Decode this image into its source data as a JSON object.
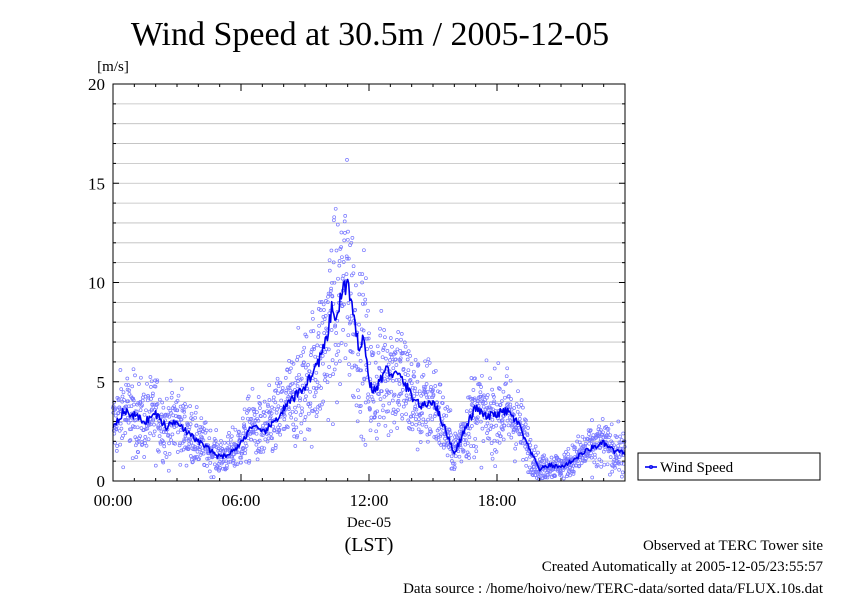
{
  "chart_data": {
    "type": "scatter",
    "title": "Wind Speed at 30.5m / 2005-12-05",
    "ylabel": "[m/s]",
    "xlabel": "(LST)",
    "date_label": "Dec-05",
    "ylim": [
      0,
      20
    ],
    "yticks": [
      "0",
      "5",
      "10",
      "15",
      "20"
    ],
    "xticks": [
      "00:00",
      "06:00",
      "12:00",
      "18:00"
    ],
    "x_unit": "hour of day",
    "xlim": [
      0,
      24
    ],
    "grid": true,
    "legend_position": "right, lower",
    "series": [
      {
        "name": "Wind Speed",
        "color": "#0000ee",
        "scatter_color": "#7777ff",
        "x": [
          0,
          0.5,
          1,
          1.5,
          2,
          2.5,
          3,
          3.5,
          4,
          4.5,
          5,
          5.5,
          6,
          6.5,
          7,
          7.5,
          8,
          8.5,
          9,
          9.5,
          10,
          10.25,
          10.5,
          10.75,
          11,
          11.25,
          11.5,
          11.75,
          12,
          12.25,
          12.5,
          12.75,
          13,
          13.5,
          14,
          14.5,
          15,
          15.5,
          16,
          16.5,
          17,
          17.5,
          18,
          18.5,
          19,
          19.5,
          20,
          20.5,
          21,
          21.5,
          22,
          22.5,
          23,
          23.5,
          24
        ],
        "y": [
          2.8,
          3.5,
          3.3,
          3.0,
          3.4,
          2.7,
          3.1,
          2.4,
          2.0,
          1.6,
          1.2,
          1.4,
          1.9,
          2.8,
          2.4,
          2.9,
          3.6,
          4.2,
          4.8,
          5.7,
          7.0,
          8.6,
          8.2,
          9.6,
          10.0,
          8.3,
          6.8,
          7.3,
          5.0,
          4.5,
          5.0,
          5.6,
          5.5,
          5.2,
          4.3,
          3.7,
          4.1,
          2.8,
          1.4,
          2.6,
          3.7,
          3.2,
          3.4,
          3.5,
          2.9,
          1.6,
          0.6,
          0.8,
          0.7,
          1.0,
          1.4,
          1.7,
          1.9,
          1.5,
          1.4
        ]
      }
    ]
  },
  "footer": {
    "observed": "Observed at TERC Tower site",
    "created": "Created Automatically at 2005-12-05/23:55:57",
    "source": "Data source : /home/hoivo/new/TERC-data/sorted  data/FLUX.10s.dat"
  }
}
